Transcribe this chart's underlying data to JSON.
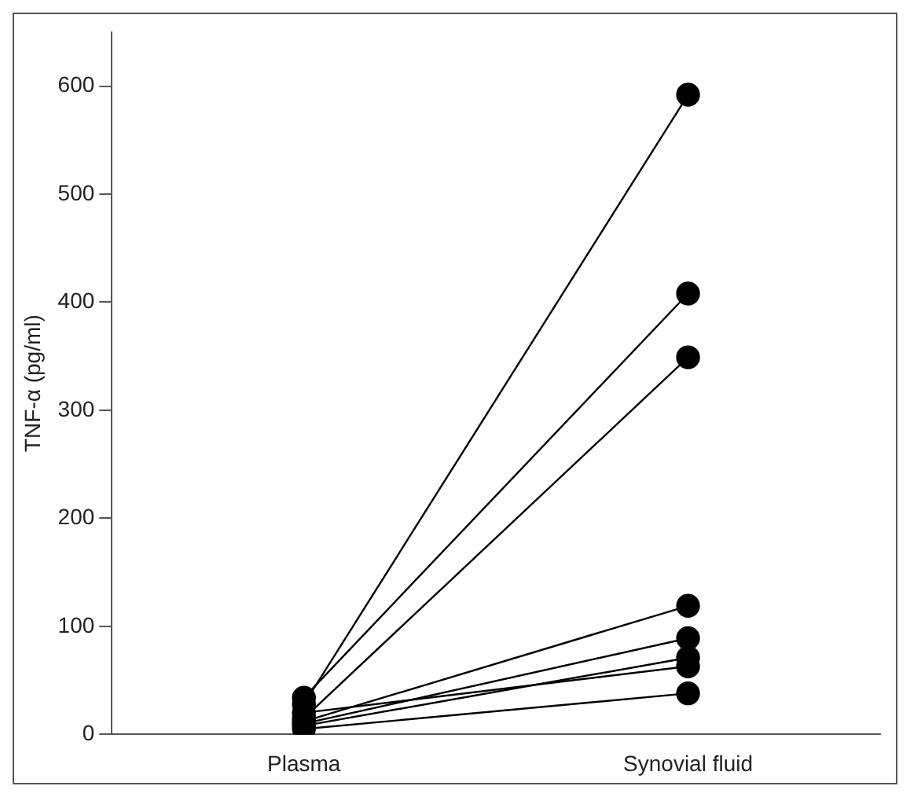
{
  "chart_data": {
    "type": "line",
    "categories": [
      "Plasma",
      "Synovial fluid"
    ],
    "ylabel": "TNF-α (pg/ml)",
    "ylim": [
      0,
      650
    ],
    "yticks": [
      0,
      100,
      200,
      300,
      400,
      500,
      600
    ],
    "grid": false,
    "legend": false,
    "marker": "circle",
    "line_style": "solid",
    "series": [
      {
        "color": "#000000",
        "values": [
          28,
          592
        ]
      },
      {
        "color": "#000000",
        "values": [
          34,
          408
        ]
      },
      {
        "color": "#000000",
        "values": [
          15,
          349
        ]
      },
      {
        "color": "#000000",
        "values": [
          12,
          119
        ]
      },
      {
        "color": "#000000",
        "values": [
          10,
          89
        ]
      },
      {
        "color": "#000000",
        "values": [
          8,
          71
        ]
      },
      {
        "color": "#000000",
        "values": [
          20,
          63
        ]
      },
      {
        "color": "#000000",
        "values": [
          5,
          38
        ]
      }
    ]
  }
}
